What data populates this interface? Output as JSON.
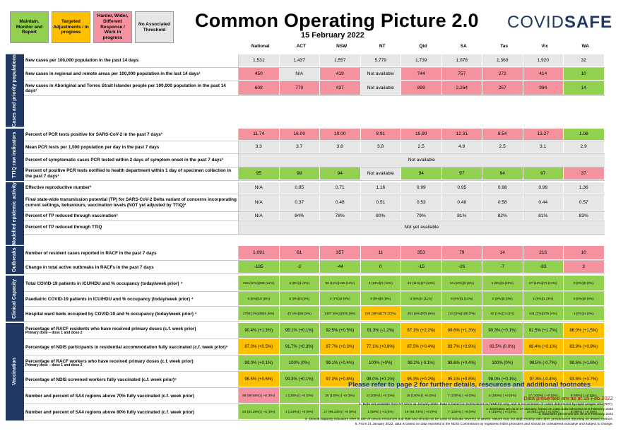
{
  "legend": [
    {
      "label": "Maintain. Monitor and Report",
      "color": "#92d050"
    },
    {
      "label": "Targeted Adjustments / in progress",
      "color": "#ffc000"
    },
    {
      "label": "Harder, Wider, Different Response / Work in progress",
      "color": "#f4939f"
    },
    {
      "label": "No Associated Threshold",
      "color": "#e7e6e6"
    }
  ],
  "title": "Common Operating Picture 2.0",
  "date": "15 February 2022",
  "logo": {
    "part1": "COVID",
    "part2": "SAFE"
  },
  "columns": [
    "National",
    "ACT",
    "NSW",
    "NT",
    "Qld",
    "SA",
    "Tas",
    "Vic",
    "WA"
  ],
  "sections": [
    {
      "label": "Cases and priority populations",
      "rows": [
        {
          "label": "New cases per 100,000 population in the past 14 days",
          "cells": [
            [
              "1,531",
              "n"
            ],
            [
              "1,437",
              "n"
            ],
            [
              "1,557",
              "n"
            ],
            [
              "5,779",
              "n"
            ],
            [
              "1,739",
              "n"
            ],
            [
              "1,078",
              "n"
            ],
            [
              "1,369",
              "n"
            ],
            [
              "1,920",
              "n"
            ],
            [
              "32",
              "n"
            ]
          ]
        },
        {
          "label": "New cases in regional and remote areas per 100,000 population in the last 14 days¹",
          "cells": [
            [
              "450",
              "r"
            ],
            [
              "N/A",
              "n"
            ],
            [
              "419",
              "r"
            ],
            [
              "Not available",
              "n"
            ],
            [
              "744",
              "r"
            ],
            [
              "757",
              "r"
            ],
            [
              "272",
              "r"
            ],
            [
              "414",
              "r"
            ],
            [
              "10",
              "g"
            ]
          ]
        },
        {
          "label": "New cases in Aboriginal and Torres Strait Islander people per 100,000 population in the past 14 days¹",
          "cells": [
            [
              "608",
              "r"
            ],
            [
              "770",
              "r"
            ],
            [
              "437",
              "r"
            ],
            [
              "Not available",
              "n"
            ],
            [
              "899",
              "r"
            ],
            [
              "2,264",
              "r"
            ],
            [
              "257",
              "r"
            ],
            [
              "994",
              "r"
            ],
            [
              "14",
              "g"
            ]
          ]
        }
      ]
    },
    {
      "label": "TTIQ raw indicators",
      "rows": [
        {
          "label": "Percent of PCR tests positive for SARS-CoV-2 in the past 7 days²",
          "cells": [
            [
              "11.74",
              "r"
            ],
            [
              "16.00",
              "r"
            ],
            [
              "10.00",
              "r"
            ],
            [
              "8.91",
              "r"
            ],
            [
              "19.99",
              "r"
            ],
            [
              "12.31",
              "r"
            ],
            [
              "8.54",
              "r"
            ],
            [
              "13.27",
              "r"
            ],
            [
              "1.06",
              "g"
            ]
          ]
        },
        {
          "label": "Mean PCR tests per 1,000 population per day in the past 7 days",
          "cells": [
            [
              "3.3",
              "n"
            ],
            [
              "3.7",
              "n"
            ],
            [
              "3.8",
              "n"
            ],
            [
              "5.8",
              "n"
            ],
            [
              "2.5",
              "n"
            ],
            [
              "4.8",
              "n"
            ],
            [
              "2.5",
              "n"
            ],
            [
              "3.1",
              "n"
            ],
            [
              "2.9",
              "n"
            ]
          ]
        },
        {
          "label": "Percent of symptomatic cases PCR tested within 2 days of symptom onset in the past 7 days³",
          "span": "Not available"
        },
        {
          "label": "Percent of positive PCR tests notified to health department within 1 day of specimen collection in the past 7 days¹",
          "cells": [
            [
              "95",
              "g"
            ],
            [
              "98",
              "g"
            ],
            [
              "94",
              "g"
            ],
            [
              "Not available",
              "n"
            ],
            [
              "94",
              "g"
            ],
            [
              "97",
              "g"
            ],
            [
              "94",
              "g"
            ],
            [
              "97",
              "g"
            ],
            [
              "37",
              "r"
            ]
          ]
        }
      ]
    },
    {
      "label": "Modelled epidemic activity",
      "rows": [
        {
          "label": "Effective reproductive number²",
          "cells": [
            [
              "N/A",
              "n"
            ],
            [
              "0.85",
              "n"
            ],
            [
              "0.71",
              "n"
            ],
            [
              "1.16",
              "n"
            ],
            [
              "0.99",
              "n"
            ],
            [
              "0.95",
              "n"
            ],
            [
              "0.98",
              "n"
            ],
            [
              "0.99",
              "n"
            ],
            [
              "1.36",
              "n"
            ]
          ]
        },
        {
          "label": "Final state-wide transmission potential (TP) for SARS-CoV-2 Delta variant of concerns incorporating current settings, behaviours, vaccination levels (NOT yet adjusted by TTIQ)²",
          "cells": [
            [
              "N/A",
              "n"
            ],
            [
              "0.37",
              "n"
            ],
            [
              "0.48",
              "n"
            ],
            [
              "0.51",
              "n"
            ],
            [
              "0.53",
              "n"
            ],
            [
              "0.48",
              "n"
            ],
            [
              "0.58",
              "n"
            ],
            [
              "0.44",
              "n"
            ],
            [
              "0.57",
              "n"
            ]
          ]
        },
        {
          "label": "Percent of TP reduced through vaccination³",
          "cells": [
            [
              "N/A",
              "n"
            ],
            [
              "84%",
              "n"
            ],
            [
              "78%",
              "n"
            ],
            [
              "80%",
              "n"
            ],
            [
              "79%",
              "n"
            ],
            [
              "81%",
              "n"
            ],
            [
              "82%",
              "n"
            ],
            [
              "81%",
              "n"
            ],
            [
              "83%",
              "n"
            ]
          ]
        },
        {
          "label": "Percent of TP reduced through TTIQ",
          "span": "Not yet available"
        }
      ]
    },
    {
      "label": "Outbreaks",
      "rows": [
        {
          "label": "Number of resident cases reported in RACF in the past 7 days",
          "cells": [
            [
              "1,091",
              "r"
            ],
            [
              "61",
              "r"
            ],
            [
              "357",
              "r"
            ],
            [
              "11",
              "r"
            ],
            [
              "353",
              "r"
            ],
            [
              "79",
              "r"
            ],
            [
              "14",
              "r"
            ],
            [
              "216",
              "r"
            ],
            [
              "10",
              "r"
            ]
          ]
        },
        {
          "label": "Change in total active outbreaks in RACFs in the past 7 days",
          "cells": [
            [
              "-185",
              "g"
            ],
            [
              "-2",
              "g"
            ],
            [
              "-44",
              "g"
            ],
            [
              "0",
              "g"
            ],
            [
              "-15",
              "g"
            ],
            [
              "-26",
              "g"
            ],
            [
              "-7",
              "g"
            ],
            [
              "-93",
              "g"
            ],
            [
              "3",
              "r"
            ]
          ]
        }
      ]
    },
    {
      "label": "Clinical Capacity",
      "rows": [
        {
          "label": "Total COVID-19 patients in ICU/HDU and % occupancy (today/week prior) ⁴",
          "cells": [
            [
              "233 (10%)|268 (12%)",
              "g"
            ],
            [
              "4 (8%)|1 (2%)",
              "g"
            ],
            [
              "96 (11%)|132 (14%)",
              "g"
            ],
            [
              "3 (13%)|3 (12%)",
              "g"
            ],
            [
              "44 (11%)|47 (13%)",
              "g"
            ],
            [
              "16 (10%)|9 (6%)",
              "g"
            ],
            [
              "3 (8%)|3 (10%)",
              "g"
            ],
            [
              "67 (12%)|73 (13%)",
              "g"
            ],
            [
              "0 (0%)|0 (0%)",
              "g"
            ]
          ]
        },
        {
          "label": "Paediatric COVID-19 patients in ICU/HDU and % occupancy (today/week prior) ⁴",
          "cells": [
            [
              "6 (5%)|10 (8%)",
              "g"
            ],
            [
              "0 (0%)|0 (0%)",
              "g"
            ],
            [
              "3 (7%)|4 (9%)",
              "g"
            ],
            [
              "0 (0%)|0 (0%)",
              "g"
            ],
            [
              "2 (6%)|4 (11%)",
              "g"
            ],
            [
              "0 (0%)|1 (14%)",
              "g"
            ],
            [
              "0 (0%)|0 (0%)",
              "g"
            ],
            [
              "1 (3%)|1 (3%)",
              "g"
            ],
            [
              "0 (0%)|0 (0%)",
              "g"
            ]
          ]
        },
        {
          "label": "Hospital ward beds occupied by COVID-19 and % occupancy (today/week prior) ⁴",
          "cells": [
            [
              "2768 (4%)|3653 (6%)",
              "g"
            ],
            [
              "49 (4%)|56 (5%)",
              "g"
            ],
            [
              "1487 (6%)|1936 (8%)",
              "g"
            ],
            [
              "156 (28%)|178 (32%)",
              "o"
            ],
            [
              "491 (4%)|705 (6%)",
              "g"
            ],
            [
              "133 (5%)|188 (7%)",
              "g"
            ],
            [
              "10 (1%)|14 (1%)",
              "g"
            ],
            [
              "441 (3%)|575 (4%)",
              "g"
            ],
            [
              "1 (0%)|1 (0%)",
              "g"
            ]
          ]
        }
      ]
    },
    {
      "label": "Vaccination",
      "rows": [
        {
          "label": "Percentage of RACF residents who have received primary doses (c.f. week prior)",
          "sub": "Primary dose – dose 1 and dose 2",
          "cells": [
            [
              "90.4% (+1.3%)",
              "g"
            ],
            [
              "95.1% (+0.1%)",
              "g"
            ],
            [
              "92.5% (+0.5%)",
              "g"
            ],
            [
              "91.3% (-1.2%)",
              "g"
            ],
            [
              "87.1% (+2.2%)",
              "o"
            ],
            [
              "89.6% (+1.3%)",
              "o"
            ],
            [
              "90.3% (+0.1%)",
              "g"
            ],
            [
              "91.5% (+1.7%)",
              "g"
            ],
            [
              "86.0% (+1.5%)",
              "o"
            ]
          ]
        },
        {
          "label": "Percentage of NDIS participants in residential accommodation fully vaccinated (c.f. week prior)⁵",
          "cells": [
            [
              "87.0% (+0.5%)",
              "o"
            ],
            [
              "91.7% (+0.3%)",
              "g"
            ],
            [
              "87.7% (+0.3%)",
              "o"
            ],
            [
              "77.1% (+0.8%)",
              "o"
            ],
            [
              "87.5% (+0.4%)",
              "o"
            ],
            [
              "83.7% (+0.9%)",
              "o"
            ],
            [
              "83.5% (0.0%)",
              "r"
            ],
            [
              "88.4% (+0.1%)",
              "o"
            ],
            [
              "83.9% (+0.9%)",
              "o"
            ]
          ]
        },
        {
          "label": "Percentage of RACF workers who have received primary doses (c.f. week prior)",
          "sub": "Primary dose – dose 1 and dose 2",
          "cells": [
            [
              "99.0% (+0.1%)",
              "g"
            ],
            [
              "100% (0%)",
              "g"
            ],
            [
              "99.1% (+0.4%)",
              "g"
            ],
            [
              "100% (+0%)",
              "g"
            ],
            [
              "99.2% (-0.1%)",
              "g"
            ],
            [
              "98.6% (+0.4%)",
              "g"
            ],
            [
              "100% (0%)",
              "g"
            ],
            [
              "98.5% (-0.7%)",
              "g"
            ],
            [
              "99.6% (+1.6%)",
              "g"
            ]
          ]
        },
        {
          "label": "Percentage of NDIS screened workers fully vaccinated (c.f. week prior)⁵",
          "cells": [
            [
              "96.5% (+0.6%)",
              "o"
            ],
            [
              "99.3% (+0.1%)",
              "g"
            ],
            [
              "97.2% (+0.8%)",
              "o"
            ],
            [
              "98.0% (+0.1%)",
              "g"
            ],
            [
              "95.3% (+0.2%)",
              "o"
            ],
            [
              "95.1% (+0.8%)",
              "o"
            ],
            [
              "98.0% (+0.1%)",
              "g"
            ],
            [
              "97.3% (-0.4%)",
              "o"
            ],
            [
              "93.8% (+3.7%)",
              "o"
            ]
          ]
        },
        {
          "label": "Number and percent of SA4 regions above 70% fully vaccinated (c.f. week prior)",
          "cells": [
            [
              "88 (98.88%) | +0 (0%)",
              "r"
            ],
            [
              "1 (100%) | +0 (0%)",
              "g"
            ],
            [
              "28 (100%) | +0 (0%)",
              "g"
            ],
            [
              "2 (100%) | +0 (0%)",
              "g"
            ],
            [
              "19 (100%) | +0 (0%)",
              "g"
            ],
            [
              "7 (100%) | +0 (0%)",
              "g"
            ],
            [
              "4 (100%) | +0 (0%)",
              "g"
            ],
            [
              "17 (100%) | +0 (0%)",
              "g"
            ],
            [
              "9 (90%) | +0 (0%)",
              "g"
            ]
          ]
        },
        {
          "label": "Number and percent of SA4 regions above 80% fully vaccinated (c.f. week prior)",
          "cells": [
            [
              "83 (93.26%) | +0 (0%)",
              "g"
            ],
            [
              "1 (100%) | +0 (0%)",
              "g"
            ],
            [
              "27 (96.43%) | +0 (0%)",
              "g"
            ],
            [
              "1 (50%) | +0 (0%)",
              "g"
            ],
            [
              "18 (94.74%) | +0 (0%)",
              "g"
            ],
            [
              "7 (100%) | +0 (0%)",
              "g"
            ],
            [
              "4 (100%) | +0 (0%)",
              "g"
            ],
            [
              "16 (94.12%) | +0 (0%)",
              "g"
            ],
            [
              "9 (90%) | +0 (0%)",
              "g"
            ]
          ]
        }
      ]
    }
  ],
  "refer": "Please refer to page 2 for further details, resources and additional footnotes",
  "presented": "Data presented are as at 15 Feb 2022",
  "footnotes": [
    "1.   Data not available from NT since 11 January 2022. Data is based on Notifications to NINDSS only, and is not inclusive of cases determined by rapid antigen test (RAT).",
    "2.   Estimates are as of 27 January, based on case data extracted on 8 February 2022",
    "3.   Estimates presented are as at 8 February 2022",
    "4.   Clinical capacity indicators refer to use of clinical resources and staff and should not be used to indicate severity of illness. Values may not align exactly with other jurisdictional reporting on related metrics.",
    "5.   From 21 January 2022, data is based on data reported to the NDIS Commission by registered NDIS providers and should be considered indicative and subject to change."
  ]
}
